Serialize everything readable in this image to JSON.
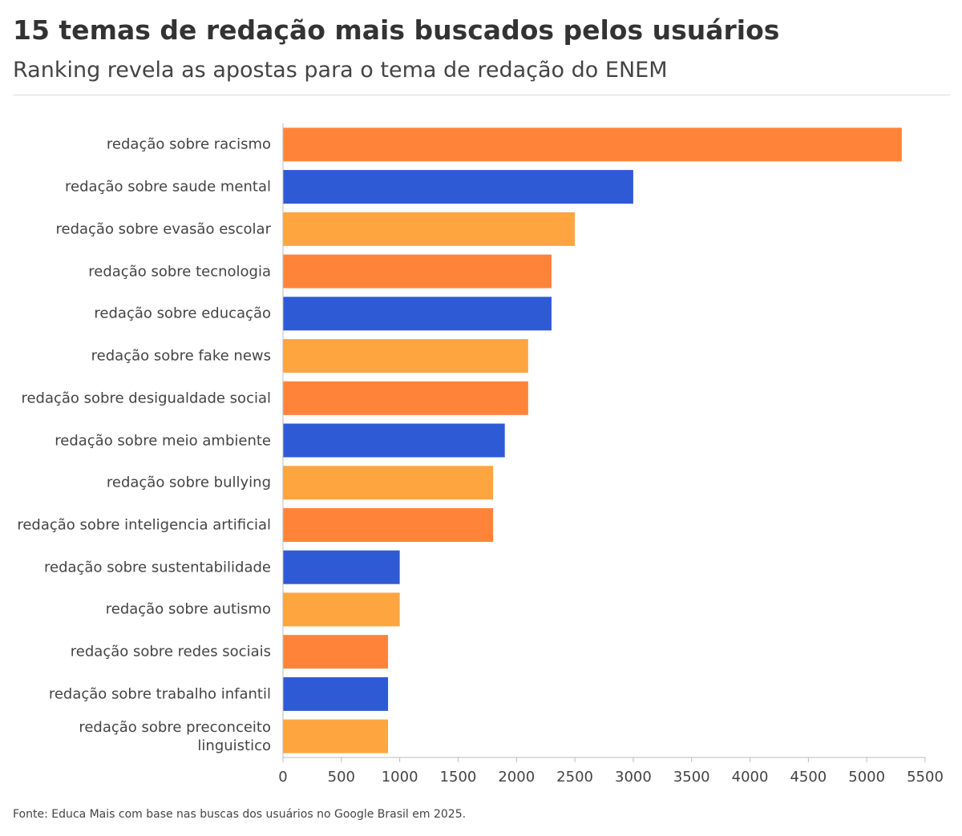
{
  "title": "15 temas de redação mais buscados pelos usuários",
  "subtitle": "Ranking revela as apostas para o tema de redação do ENEM",
  "source": "Fonte: Educa Mais com base nas buscas dos usuários no Google Brasil em 2025.",
  "chart_data": {
    "type": "bar",
    "orientation": "horizontal",
    "categories": [
      "redação sobre racismo",
      "redação sobre saude mental",
      "redação sobre evasão escolar",
      "redação sobre tecnologia",
      "redação sobre educação",
      "redação sobre fake news",
      "redação sobre desigualdade social",
      "redação sobre meio ambiente",
      "redação sobre bullying",
      "redação sobre inteligencia artificial",
      "redação sobre sustentabilidade",
      "redação sobre autismo",
      "redação sobre redes sociais",
      "redação sobre trabalho infantil",
      "redação sobre preconceito linguistico"
    ],
    "values": [
      5300,
      3000,
      2500,
      2300,
      2300,
      2100,
      2100,
      1900,
      1800,
      1800,
      1000,
      1000,
      900,
      900,
      900
    ],
    "colors": [
      "#ff843a",
      "#2f5ad6",
      "#ffa53f",
      "#ff843a",
      "#2f5ad6",
      "#ffa53f",
      "#ff843a",
      "#2f5ad6",
      "#ffa53f",
      "#ff843a",
      "#2f5ad6",
      "#ffa53f",
      "#ff843a",
      "#2f5ad6",
      "#ffa53f"
    ],
    "xlim": [
      0,
      5500
    ],
    "xticks": [
      0,
      500,
      1000,
      1500,
      2000,
      2500,
      3000,
      3500,
      4000,
      4500,
      5000,
      5500
    ],
    "grid": false
  }
}
